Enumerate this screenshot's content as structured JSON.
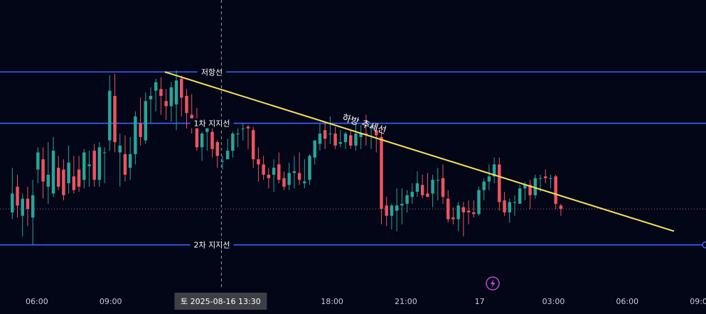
{
  "chart_data": {
    "type": "candlestick",
    "grid": false,
    "colors": {
      "background": "#020617",
      "up": "#26a69a",
      "down": "#ef5361",
      "levels": "#3b63ff",
      "trendline": "#f7e05a",
      "crosshair": "#9aa0aa",
      "axis_text": "#c9ccd6",
      "alert_icon": "#c24bd8"
    },
    "x_axis": {
      "range": [
        4.5,
        33.2
      ],
      "tick_values": [
        6,
        9,
        18,
        21,
        24,
        27,
        30,
        33
      ],
      "tick_labels": [
        "06:00",
        "09:00",
        "18:00",
        "21:00",
        "17",
        "03:00",
        "06:00",
        "09:00"
      ]
    },
    "y_axis": {
      "range": [
        -6,
        162
      ]
    },
    "levels": [
      {
        "label": "저항선",
        "y": 120
      },
      {
        "label": "1차 지지선",
        "y": 90
      },
      {
        "label": "2차 지지선",
        "y": 19
      }
    ],
    "trendline": {
      "label": "하방 추세선",
      "from": [
        11.2,
        120
      ],
      "to": [
        31.9,
        27
      ]
    },
    "reference_line_y": 40,
    "crosshair": {
      "x": 13.5,
      "label": "토 2025-08-16   13:30"
    },
    "candles": [
      [
        38.0,
        49.0,
        34.0,
        64.0
      ],
      [
        53.0,
        42.0,
        35.0,
        60.0
      ],
      [
        36.0,
        46.0,
        24.0,
        49.0
      ],
      [
        46.0,
        40.0,
        30.0,
        53.0
      ],
      [
        35.0,
        48.0,
        19.0,
        57.0
      ],
      [
        63.0,
        73.0,
        55.0,
        76.0
      ],
      [
        69.0,
        56.0,
        46.0,
        76.0
      ],
      [
        53.0,
        60.0,
        43.0,
        79.0
      ],
      [
        49.0,
        74.0,
        47.0,
        82.0
      ],
      [
        64.0,
        53.0,
        51.0,
        71.0
      ],
      [
        63.0,
        48.0,
        45.0,
        69.0
      ],
      [
        55.0,
        67.0,
        49.0,
        77.0
      ],
      [
        59.0,
        51.0,
        49.0,
        71.0
      ],
      [
        63.0,
        53.0,
        50.0,
        71.0
      ],
      [
        57.0,
        73.0,
        52.0,
        75.0
      ],
      [
        65.0,
        66.0,
        53.0,
        74.0
      ],
      [
        74.0,
        57.0,
        53.0,
        78.0
      ],
      [
        57.0,
        76.0,
        53.0,
        79.0
      ],
      [
        73.0,
        73.0,
        55.0,
        76.0
      ],
      [
        80.0,
        109.0,
        74.0,
        118.0
      ],
      [
        106.0,
        79.0,
        73.0,
        119.0
      ],
      [
        73.0,
        77.0,
        53.0,
        84.0
      ],
      [
        72.0,
        60.0,
        56.0,
        83.0
      ],
      [
        64.0,
        72.0,
        57.0,
        82.0
      ],
      [
        72.0,
        94.0,
        66.0,
        97.0
      ],
      [
        90.0,
        82.0,
        77.0,
        105.0
      ],
      [
        80.0,
        103.0,
        78.0,
        108.0
      ],
      [
        104.0,
        106.0,
        90.0,
        111.0
      ],
      [
        109.0,
        114.0,
        97.0,
        116.0
      ],
      [
        110.0,
        106.0,
        95.0,
        117.0
      ],
      [
        103.0,
        100.0,
        92.0,
        110.0
      ],
      [
        100.0,
        111.0,
        91.0,
        114.0
      ],
      [
        101.0,
        115.0,
        86.0,
        121.0
      ],
      [
        116.0,
        105.0,
        94.0,
        118.0
      ],
      [
        106.0,
        96.0,
        87.0,
        110.0
      ],
      [
        95.0,
        88.0,
        84.0,
        107.0
      ],
      [
        91.0,
        76.0,
        74.0,
        99.0
      ],
      [
        76.0,
        84.0,
        68.0,
        85.0
      ],
      [
        85.0,
        88.0,
        74.0,
        91.0
      ],
      [
        85.0,
        75.0,
        70.0,
        87.0
      ],
      [
        79.0,
        71.0,
        64.0,
        80.0
      ],
      [
        68.0,
        68.0,
        63.0,
        71.0
      ],
      [
        69.0,
        74.0,
        69.0,
        81.0
      ],
      [
        74.0,
        84.0,
        70.0,
        85.0
      ],
      [
        84.0,
        84.0,
        76.0,
        87.0
      ],
      [
        87.0,
        87.0,
        80.0,
        90.0
      ],
      [
        88.0,
        87.0,
        75.0,
        89.0
      ],
      [
        86.0,
        69.0,
        64.0,
        88.0
      ],
      [
        69.0,
        66.0,
        56.0,
        76.0
      ],
      [
        66.0,
        60.0,
        57.0,
        71.0
      ],
      [
        60.0,
        58.0,
        52.0,
        64.0
      ],
      [
        60.0,
        64.0,
        50.0,
        69.0
      ],
      [
        66.0,
        57.0,
        55.0,
        73.0
      ],
      [
        58.0,
        53.0,
        51.0,
        62.0
      ],
      [
        54.0,
        61.0,
        51.0,
        67.0
      ],
      [
        61.0,
        62.0,
        52.0,
        71.0
      ],
      [
        61.0,
        57.0,
        54.0,
        73.0
      ],
      [
        55.0,
        56.0,
        52.0,
        69.0
      ],
      [
        57.0,
        71.0,
        54.0,
        72.0
      ],
      [
        70.0,
        80.0,
        66.0,
        80.0
      ],
      [
        78.0,
        84.0,
        74.0,
        90.0
      ],
      [
        86.0,
        81.0,
        75.0,
        90.0
      ],
      [
        84.0,
        84.0,
        78.0,
        94.0
      ],
      [
        84.0,
        77.0,
        75.0,
        88.0
      ],
      [
        78.0,
        79.0,
        76.0,
        86.0
      ],
      [
        79.0,
        84.0,
        75.0,
        85.0
      ],
      [
        83.0,
        77.0,
        75.0,
        86.0
      ],
      [
        77.0,
        84.0,
        74.0,
        89.0
      ],
      [
        82.0,
        84.0,
        75.0,
        89.0
      ],
      [
        84.0,
        83.0,
        77.0,
        95.0
      ],
      [
        87.0,
        88.0,
        75.0,
        90.0
      ],
      [
        86.0,
        83.0,
        73.0,
        88.0
      ],
      [
        82.0,
        40.0,
        31.0,
        87.0
      ],
      [
        42.0,
        36.0,
        30.0,
        47.0
      ],
      [
        36.0,
        42.0,
        28.0,
        43.0
      ],
      [
        39.0,
        42.0,
        27.0,
        52.0
      ],
      [
        42.0,
        43.0,
        31.0,
        52.0
      ],
      [
        43.0,
        48.0,
        38.0,
        51.0
      ],
      [
        47.0,
        50.0,
        43.0,
        55.0
      ],
      [
        50.0,
        55.0,
        47.0,
        62.0
      ],
      [
        54.0,
        48.0,
        46.0,
        60.0
      ],
      [
        49.0,
        47.0,
        47.0,
        61.0
      ],
      [
        49.0,
        57.0,
        41.0,
        60.0
      ],
      [
        57.0,
        57.0,
        45.0,
        64.0
      ],
      [
        58.0,
        47.0,
        43.0,
        66.0
      ],
      [
        46.0,
        34.0,
        32.0,
        51.0
      ],
      [
        35.0,
        34.0,
        31.0,
        41.0
      ],
      [
        34.0,
        42.0,
        27.0,
        44.0
      ],
      [
        41.0,
        38.0,
        24.0,
        44.0
      ],
      [
        39.0,
        38.0,
        31.0,
        45.0
      ],
      [
        38.0,
        37.0,
        35.0,
        45.0
      ],
      [
        37.0,
        51.0,
        36.0,
        53.0
      ],
      [
        51.0,
        56.0,
        45.0,
        58.0
      ],
      [
        56.0,
        59.0,
        51.0,
        66.0
      ],
      [
        59.0,
        66.0,
        55.0,
        70.0
      ],
      [
        66.0,
        44.0,
        39.0,
        70.0
      ],
      [
        45.0,
        38.0,
        36.0,
        50.0
      ],
      [
        38.0,
        44.0,
        32.0,
        46.0
      ],
      [
        44.0,
        44.0,
        36.0,
        48.0
      ],
      [
        43.0,
        52.0,
        43.0,
        54.0
      ],
      [
        52.0,
        54.0,
        45.0,
        56.0
      ],
      [
        54.0,
        48.0,
        40.0,
        57.0
      ],
      [
        48.0,
        58.0,
        46.0,
        60.0
      ],
      [
        58.0,
        58.0,
        50.0,
        60.0
      ],
      [
        59.0,
        58.0,
        55.0,
        63.0
      ],
      [
        58.0,
        58.0,
        52.0,
        60.0
      ],
      [
        59.0,
        43.0,
        40.0,
        60.0
      ],
      [
        42.0,
        40.0,
        36.0,
        43.0
      ]
    ]
  }
}
